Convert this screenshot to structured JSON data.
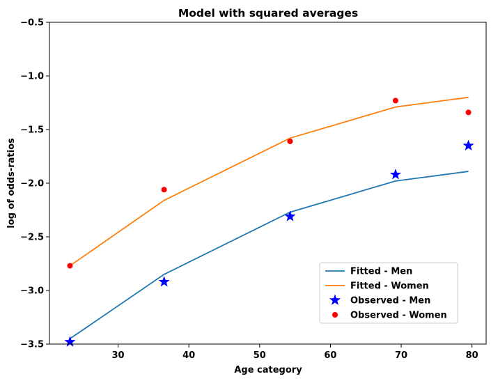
{
  "chart_data": {
    "type": "line",
    "title": "Model with squared averages",
    "xlabel": "Age category",
    "ylabel": "log of odds-ratios",
    "xlim": [
      20.3,
      82.0
    ],
    "ylim": [
      -3.5,
      -0.5
    ],
    "xticks": [
      30,
      40,
      50,
      60,
      70,
      80
    ],
    "xtick_labels": [
      "30",
      "40",
      "50",
      "60",
      "70",
      "80"
    ],
    "yticks": [
      -3.5,
      -3.0,
      -2.5,
      -2.0,
      -1.5,
      -1.0,
      -0.5
    ],
    "ytick_labels": [
      "−3.5",
      "−3.0",
      "−2.5",
      "−2.0",
      "−1.5",
      "−1.0",
      "−0.5"
    ],
    "grid": false,
    "legend_position": "lower-right",
    "x": [
      23.2,
      36.5,
      54.3,
      69.2,
      79.5
    ],
    "series": [
      {
        "name": "Fitted - Men",
        "kind": "line",
        "color": "#1f77b4",
        "values": [
          -3.45,
          -2.85,
          -2.27,
          -1.98,
          -1.89
        ]
      },
      {
        "name": "Fitted - Women",
        "kind": "line",
        "color": "#ff7f0e",
        "values": [
          -2.77,
          -2.16,
          -1.58,
          -1.29,
          -1.2
        ]
      },
      {
        "name": "Observed - Men",
        "kind": "marker",
        "marker": "star",
        "color": "#0000ff",
        "values": [
          -3.48,
          -2.92,
          -2.31,
          -1.92,
          -1.65
        ]
      },
      {
        "name": "Observed - Women",
        "kind": "marker",
        "marker": "circle",
        "color": "#ff0000",
        "values": [
          -2.77,
          -2.06,
          -1.61,
          -1.23,
          -1.34
        ]
      }
    ]
  }
}
